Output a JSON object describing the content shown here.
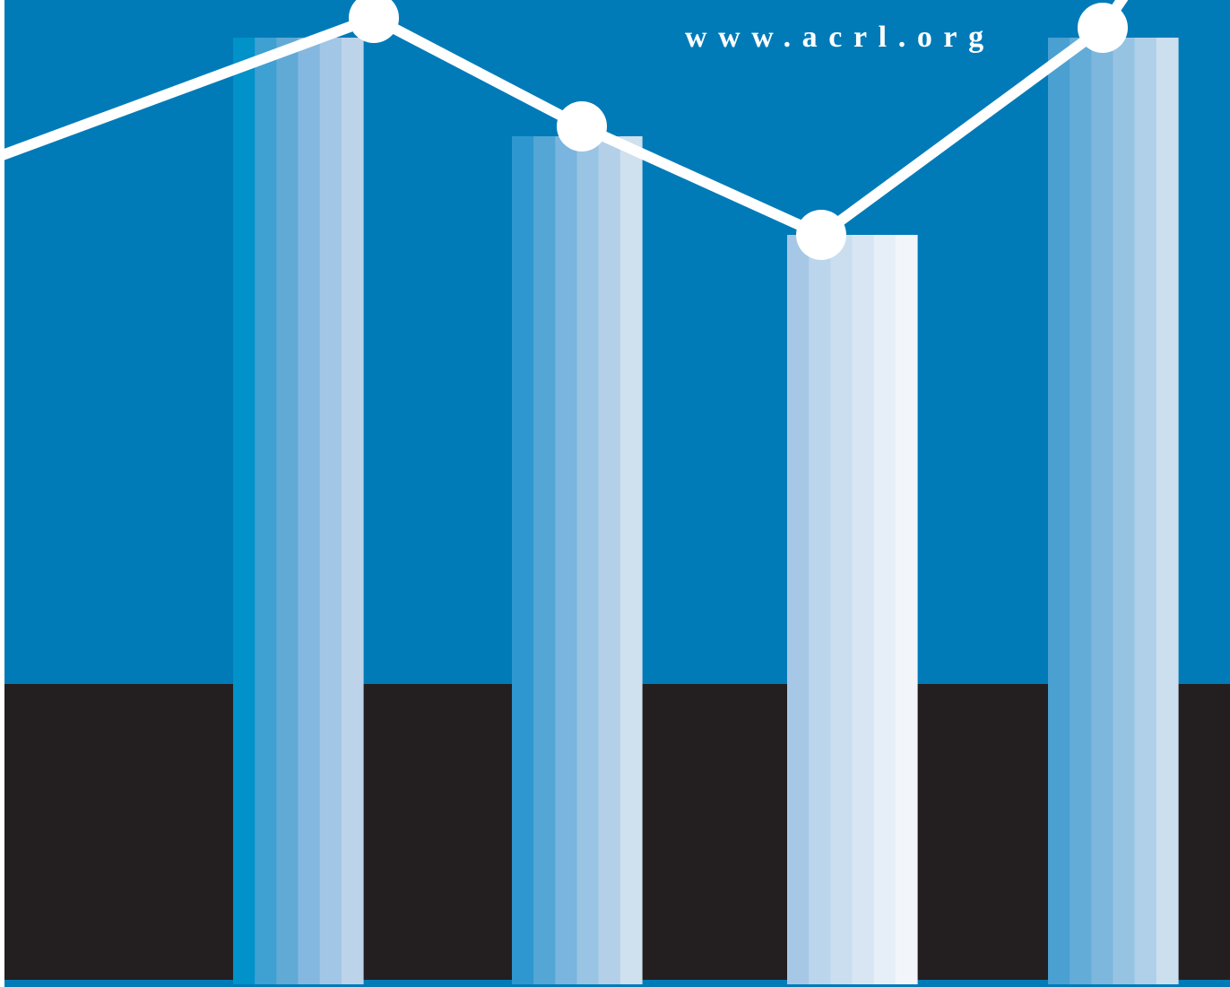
{
  "cover": {
    "url": "www.acrl.org"
  },
  "illustration": {
    "bar_levels": [
      0.96,
      0.86,
      0.76,
      0.96
    ],
    "line_levels": [
      0.84,
      0.98,
      0.87,
      0.76,
      0.97,
      1.05
    ],
    "colors": {
      "background_blue": "#007bb8",
      "ground_black": "#231f20",
      "bottom_strip": "#007bb8",
      "line": "#ffffff"
    },
    "bar_stripe_palettes": [
      [
        "#0092c9",
        "#3fa0d2",
        "#62aad6",
        "#85b8e0",
        "#a2c6e5",
        "#bcd3ea"
      ],
      [
        "#2e97cf",
        "#54a7d5",
        "#79b5de",
        "#9ac4e3",
        "#b4d0e8",
        "#cfe0ef"
      ],
      [
        "#a6c8e6",
        "#bad5ec",
        "#cbdef0",
        "#d8e6f3",
        "#e6eff8",
        "#f2f6fb"
      ],
      [
        "#4aa0d1",
        "#62acd7",
        "#7db7dd",
        "#97c3e3",
        "#b0d0e9",
        "#cbdfef"
      ]
    ]
  }
}
